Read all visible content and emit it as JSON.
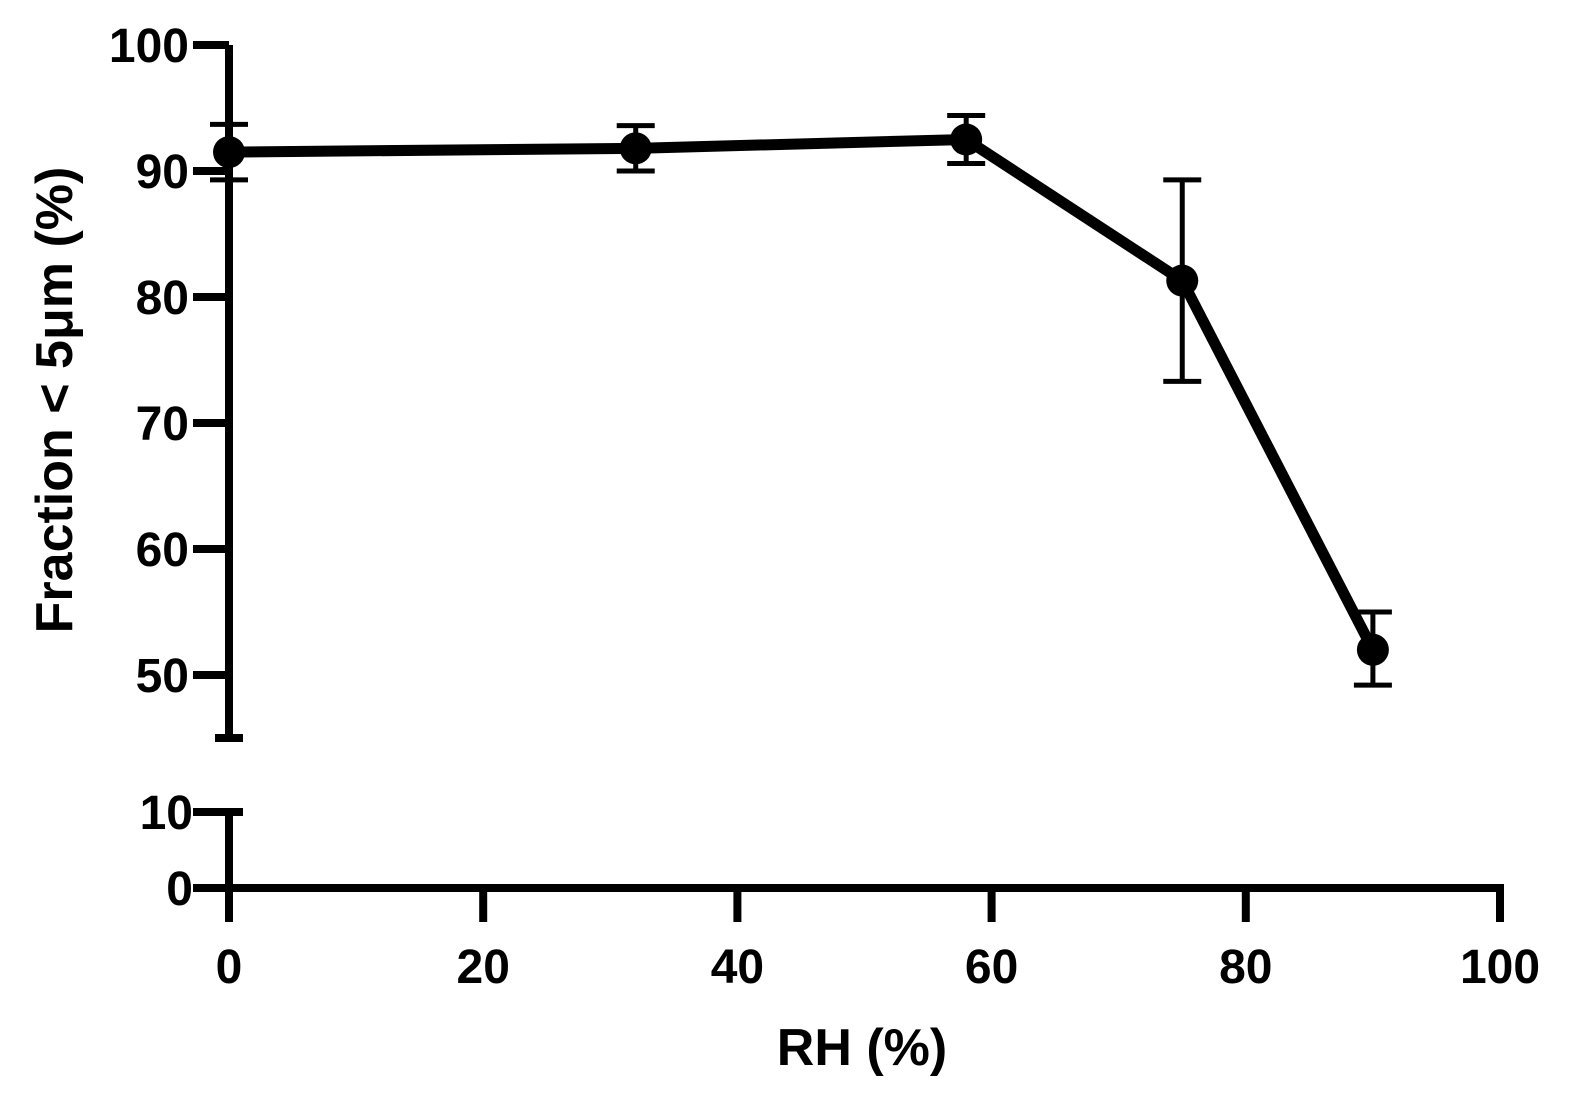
{
  "chart_data": {
    "type": "line",
    "title": "",
    "xlabel": "RH (%)",
    "ylabel": "Fraction < 5μm (%)",
    "xlim": [
      0,
      100
    ],
    "x_ticks": [
      0,
      20,
      40,
      60,
      80,
      100
    ],
    "x_tick_labels": [
      "0",
      "20",
      "40",
      "60",
      "80",
      "100"
    ],
    "y_axis_broken": true,
    "y_upper_segment": {
      "ylim": [
        45,
        100
      ],
      "ticks": [
        50,
        60,
        70,
        80,
        90,
        100
      ],
      "tick_labels": [
        "50",
        "60",
        "70",
        "80",
        "90",
        "100"
      ]
    },
    "y_lower_segment": {
      "ylim": [
        0,
        10
      ],
      "ticks": [
        0,
        10
      ],
      "tick_labels": [
        "0",
        "10"
      ]
    },
    "grid": false,
    "legend": "none",
    "series_color": "#000000",
    "series": [
      {
        "x": [
          0,
          32,
          58,
          75,
          90
        ],
        "y": [
          91.5,
          91.8,
          92.5,
          81.3,
          52.0
        ],
        "y_err_low": [
          89.3,
          90.0,
          90.6,
          73.3,
          49.2
        ],
        "y_err_high": [
          93.7,
          93.6,
          94.4,
          89.3,
          55.0
        ]
      }
    ]
  }
}
